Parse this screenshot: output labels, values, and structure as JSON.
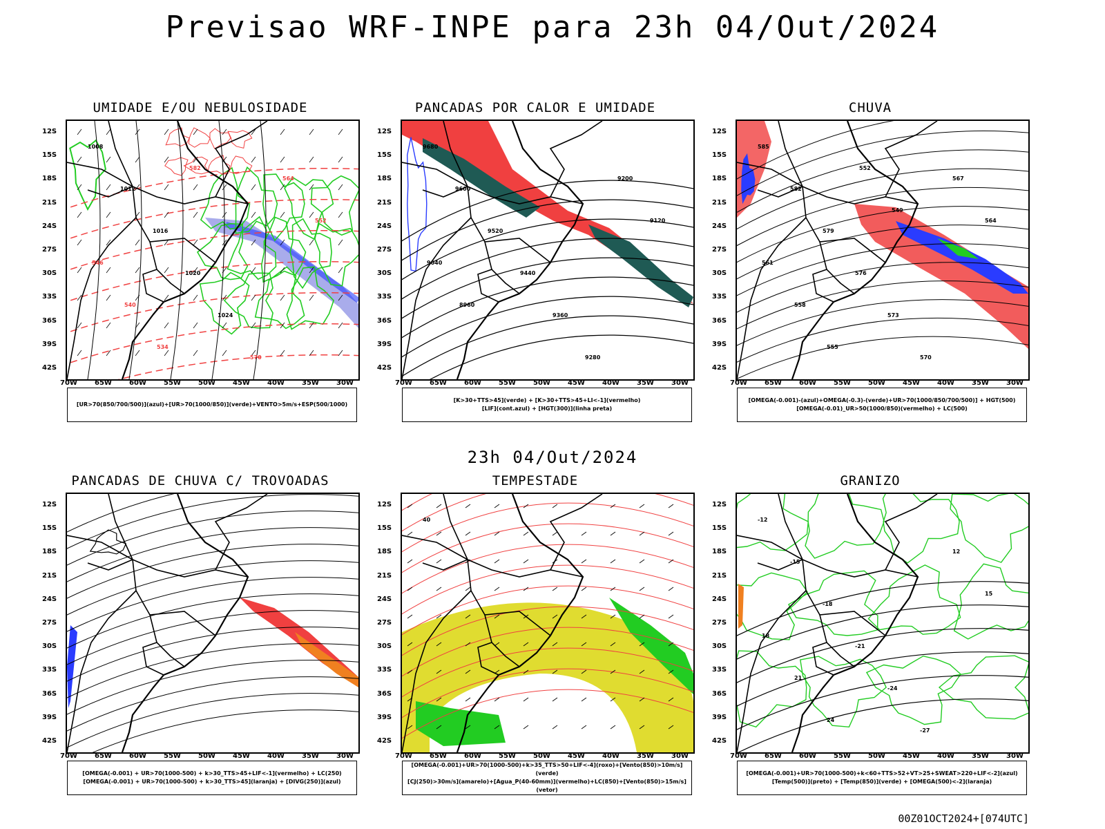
{
  "title": "Previsao WRF-INPE  para 23h 04/Out/2024",
  "mid_time": "23h 04/Out/2024",
  "footer": "00Z01OCT2024+[074UTC]",
  "lat_labels": [
    "12S",
    "15S",
    "18S",
    "21S",
    "24S",
    "27S",
    "30S",
    "33S",
    "36S",
    "39S",
    "42S"
  ],
  "lon_labels": [
    "70W",
    "65W",
    "60W",
    "55W",
    "50W",
    "45W",
    "40W",
    "35W",
    "30W"
  ],
  "colors": {
    "red": "#f04040",
    "green": "#22cc22",
    "blue": "#2a3cff",
    "orange": "#f08020",
    "yellow": "#e0dc30",
    "darkgreen": "#1f5a54",
    "lavender": "#9a9ee8"
  },
  "panels": [
    {
      "id": "umidade",
      "title": "UMIDADE E/OU NEBULOSIDADE",
      "legend": [
        "[UR>70(850/700/500)](azul)+[UR>70(1000/850)](verde)+VENTO>5m/s+ESP(500/1000)"
      ],
      "contour_labels": [
        "1008",
        "1012",
        "1016",
        "1020",
        "1024",
        "570",
        "564",
        "552",
        "546",
        "540",
        "534",
        "582"
      ]
    },
    {
      "id": "pancadas",
      "title": "PANCADAS POR CALOR E UMIDADE",
      "legend": [
        "[K>30+TTS>45](verde) + [K>30+TTS>45+LI<-1](vermelho)",
        "[LIF](cont.azul) + [HGT(300)](linha preta)"
      ],
      "contour_labels": [
        "9680",
        "9600",
        "9520",
        "9440",
        "9360",
        "9280",
        "9200",
        "9120",
        "9040",
        "8960"
      ]
    },
    {
      "id": "chuva",
      "title": "CHUVA",
      "legend": [
        "[OMEGA(-0.001)-(azul)+OMEGA(-0.3)-(verde)+UR>70(1000/850/700/500)] + HGT(500)",
        "[OMEGA(-0.01)_UR>50(1000/850)(vermelho) + LC(500)"
      ],
      "contour_labels": [
        "585",
        "582",
        "579",
        "576",
        "573",
        "570",
        "567",
        "564",
        "561",
        "558",
        "555",
        "552",
        "549"
      ]
    },
    {
      "id": "trovoadas",
      "title": "PANCADAS DE CHUVA C/ TROVOADAS",
      "legend": [
        "[OMEGA(-0.001) + UR>70(1000-500) + k>30_TTS>45+LIF<-1](vermelho) + LC(250)",
        "[OMEGA(-0.001) + UR>70(1000-500) + k>30_TTS>45](laranja) + [DIVG(250)](azul)"
      ],
      "contour_labels": []
    },
    {
      "id": "tempestade",
      "title": "TEMPESTADE",
      "legend": [
        "[OMEGA(-0.001)+UR>70(1000-500)+k>35_TTS>50+LIF<-4](roxo)+[Vento(850)>10m/s](verde)",
        "[CJ(250)>30m/s](amarelo)+[Agua_P(40-60mm)](vermelho)+LC(850)+[Vento(850)>15m/s](vetor)"
      ],
      "contour_labels": [
        "40"
      ]
    },
    {
      "id": "granizo",
      "title": "GRANIZO",
      "legend": [
        "[OMEGA(-0.001)+UR>70(1000-500)+k<60+TTS>52+VT>25+SWEAT>220+LIF<-2](azul)",
        "[Temp(500)](preto) + [Temp(850)](verde) + [OMEGA(500)<-2](laranja)"
      ],
      "contour_labels": [
        "-12",
        "-15",
        "-18",
        "-21",
        "-24",
        "-27",
        "12",
        "15",
        "18",
        "21",
        "24"
      ]
    }
  ]
}
